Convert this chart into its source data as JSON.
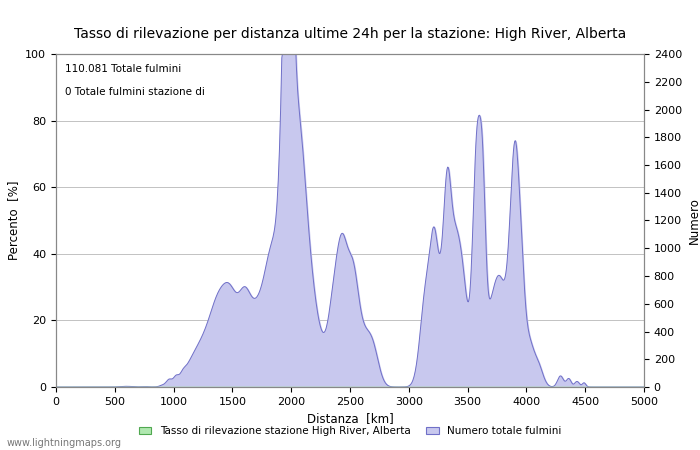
{
  "title": "Tasso di rilevazione per distanza ultime 24h per la stazione: High River, Alberta",
  "xlabel": "Distanza  [km]",
  "ylabel_left": "Percento  [%]",
  "ylabel_right": "Numero",
  "annotation_line1": "110.081 Totale fulmini",
  "annotation_line2": "0 Totale fulmini stazione di",
  "legend_label1": "Tasso di rilevazione stazione High River, Alberta",
  "legend_label2": "Numero totale fulmini",
  "watermark": "www.lightningmaps.org",
  "xlim": [
    0,
    5000
  ],
  "ylim_left": [
    0,
    100
  ],
  "ylim_right": [
    0,
    2400
  ],
  "xticks": [
    0,
    500,
    1000,
    1500,
    2000,
    2500,
    3000,
    3500,
    4000,
    4500,
    5000
  ],
  "yticks_left": [
    0,
    20,
    40,
    60,
    80,
    100
  ],
  "yticks_right": [
    0,
    200,
    400,
    600,
    800,
    1000,
    1200,
    1400,
    1600,
    1800,
    2000,
    2200,
    2400
  ],
  "fill_color": "#c8c8ee",
  "line_color": "#7070c8",
  "green_fill_color": "#b0e8b0",
  "green_line_color": "#50a850",
  "bg_color": "#ffffff",
  "grid_color": "#aaaaaa",
  "title_fontsize": 10,
  "label_fontsize": 8.5,
  "tick_fontsize": 8
}
